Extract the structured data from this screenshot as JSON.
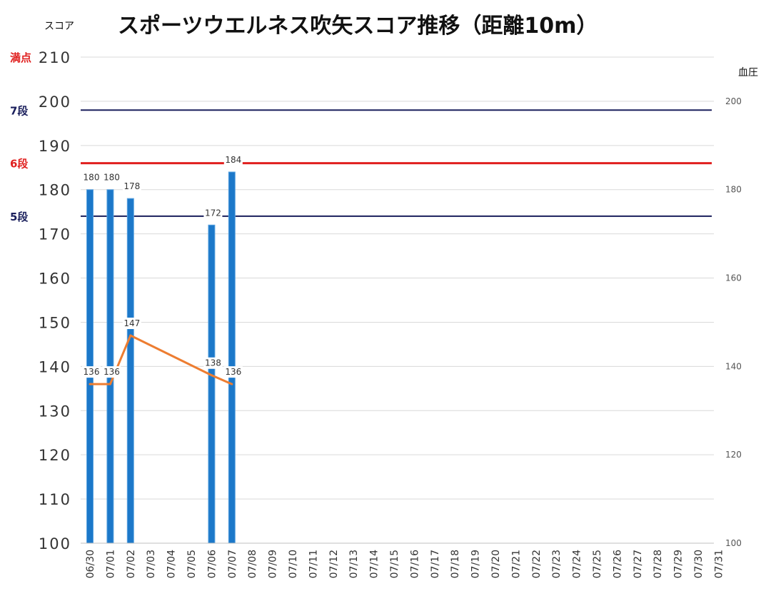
{
  "chart_data": {
    "type": "bar",
    "title": "スポーツウエルネス吹矢スコア推移（距離10m）",
    "ylabel_left": "スコア",
    "ylabel_right": "血圧",
    "categories": [
      "06/30",
      "07/01",
      "07/02",
      "07/03",
      "07/04",
      "07/05",
      "07/06",
      "07/07",
      "07/08",
      "07/09",
      "07/10",
      "07/11",
      "07/12",
      "07/13",
      "07/14",
      "07/15",
      "07/16",
      "07/17",
      "07/18",
      "07/19",
      "07/20",
      "07/21",
      "07/22",
      "07/23",
      "07/24",
      "07/25",
      "07/26",
      "07/27",
      "07/28",
      "07/29",
      "07/30",
      "07/31"
    ],
    "ylim_left": [
      100,
      210
    ],
    "yticks_left": [
      "100",
      "110",
      "120",
      "130",
      "140",
      "150",
      "160",
      "170",
      "180",
      "190",
      "200",
      "210"
    ],
    "ylim_right": [
      100,
      210
    ],
    "yticks_right": [
      "100",
      "120",
      "140",
      "160",
      "180",
      "200"
    ],
    "series": [
      {
        "type": "bar",
        "axis": "left",
        "color": "#1c78c9",
        "values": [
          180,
          180,
          178,
          null,
          null,
          null,
          172,
          184,
          null,
          null,
          null,
          null,
          null,
          null,
          null,
          null,
          null,
          null,
          null,
          null,
          null,
          null,
          null,
          null,
          null,
          null,
          null,
          null,
          null,
          null,
          null,
          null
        ]
      },
      {
        "type": "line",
        "axis": "right",
        "color": "#ed7d31",
        "values": [
          136,
          136,
          147,
          null,
          null,
          null,
          138,
          136,
          null,
          null,
          null,
          null,
          null,
          null,
          null,
          null,
          null,
          null,
          null,
          null,
          null,
          null,
          null,
          null,
          null,
          null,
          null,
          null,
          null,
          null,
          null,
          null
        ]
      }
    ],
    "reference_lines": [
      {
        "label": "満点",
        "value": 210,
        "color": "#e0201f",
        "draw_line": false
      },
      {
        "label": "7段",
        "value": 198,
        "color": "#1a1f5c",
        "draw_line": true
      },
      {
        "label": "6段",
        "value": 186,
        "color": "#e0201f",
        "draw_line": true
      },
      {
        "label": "5段",
        "value": 174,
        "color": "#1a1f5c",
        "draw_line": true
      }
    ],
    "grid": true
  }
}
